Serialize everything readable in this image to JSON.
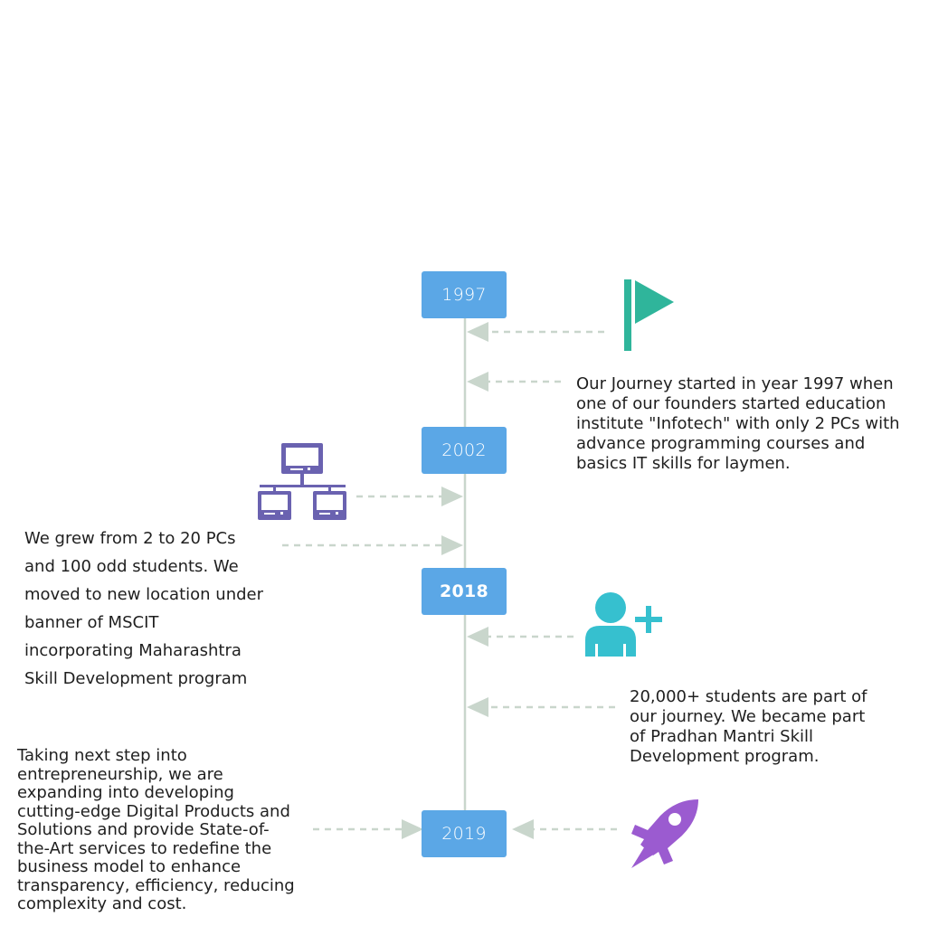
{
  "milestones": [
    {
      "year": "1997"
    },
    {
      "year": "2002"
    },
    {
      "year": "2018"
    },
    {
      "year": "2019"
    }
  ],
  "notes": {
    "n1997": "Our Journey started in year 1997 when\none of our founders started education\ninstitute \"Infotech\" with only 2 PCs with\nadvance programming courses and\nbasics IT skills for laymen.",
    "n2002": "We grew from 2 to 20 PCs\nand 100 odd students. We\nmoved to new location under\nbanner of MSCIT\nincorporating Maharashtra\nSkill Development program",
    "n2018": "20,000+ students are part of\nour journey. We became part\nof Pradhan Mantri Skill\nDevelopment program.",
    "n2019": "Taking next step into\nentrepreneurship, we are\nexpanding into developing\ncutting-edge Digital Products and\nSolutions and provide State-of-\nthe-Art services to redefine the\nbusiness model to enhance\ntransparency, efficiency, reducing\ncomplexity and cost."
  },
  "icons": [
    "flag-icon",
    "network-computers-icon",
    "add-user-icon",
    "rocket-icon"
  ],
  "colors": {
    "year_box": "#5ba7e6",
    "timeline": "#c9d6cc",
    "arrow": "#c9d6cc",
    "flag": "#2fb59b",
    "network": "#6a62b0",
    "user": "#36c0cf",
    "rocket": "#9b5bd0"
  }
}
